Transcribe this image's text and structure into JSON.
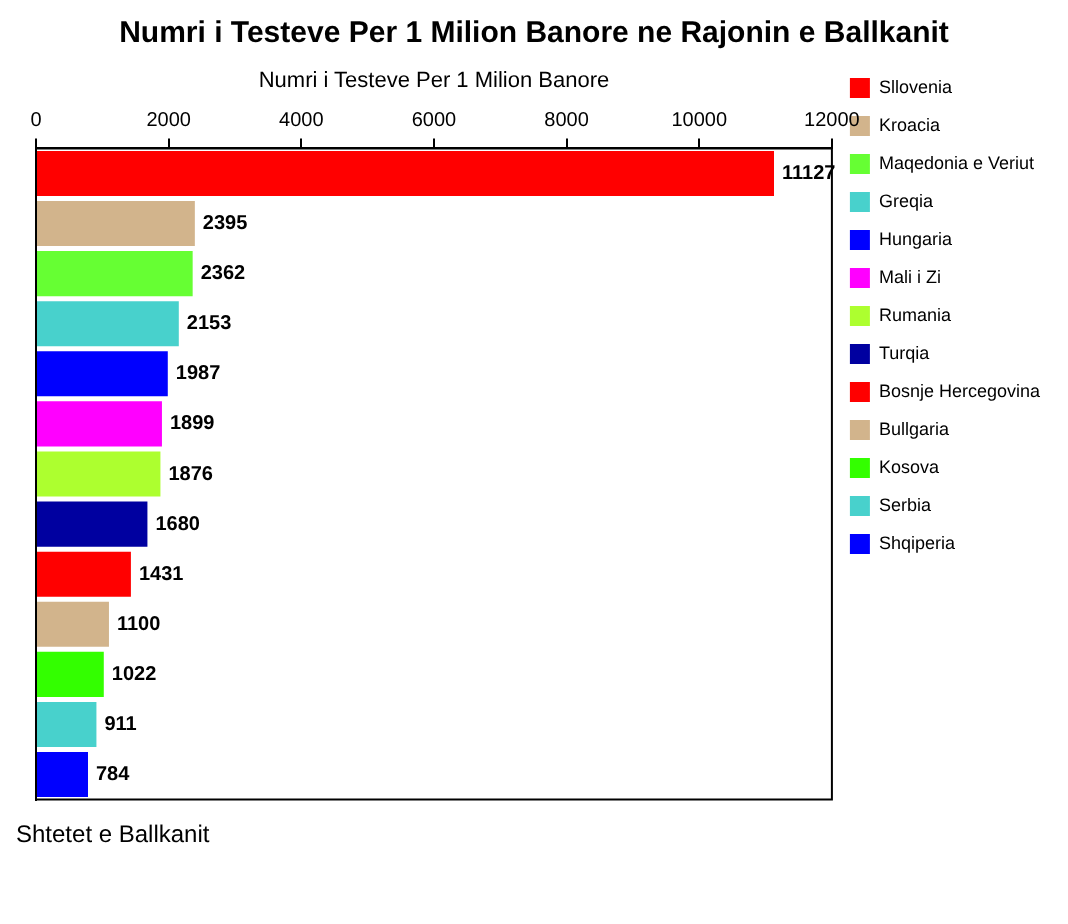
{
  "chart_data": {
    "type": "bar",
    "orientation": "horizontal",
    "title": "Numri i Testeve Per 1 Milion Banore ne Rajonin e Ballkanit",
    "xlabel": "Numri i Testeve Per 1 Milion Banore",
    "annotations": [
      "Shtetet e Ballkanit"
    ],
    "categories": [
      null,
      null,
      null,
      null,
      null,
      null,
      null,
      null,
      null,
      null,
      null,
      null,
      null
    ],
    "series": [
      {
        "name": "Sllovenia",
        "color": "#ff0000",
        "values": [
          11127,
          null,
          null,
          null,
          null,
          null,
          null,
          null,
          null,
          null,
          null,
          null,
          null
        ]
      },
      {
        "name": "Kroacia",
        "color": "#d2b48c",
        "values": [
          null,
          2395,
          null,
          null,
          null,
          null,
          null,
          null,
          null,
          null,
          null,
          null,
          null
        ]
      },
      {
        "name": "Maqedonia e Veriut",
        "color": "#66ff33",
        "values": [
          null,
          null,
          2362,
          null,
          null,
          null,
          null,
          null,
          null,
          null,
          null,
          null,
          null
        ]
      },
      {
        "name": "Greqia",
        "color": "#48d1cc",
        "values": [
          null,
          null,
          null,
          2153,
          null,
          null,
          null,
          null,
          null,
          null,
          null,
          null,
          null
        ]
      },
      {
        "name": "Hungaria",
        "color": "#0000ff",
        "values": [
          null,
          null,
          null,
          null,
          1987,
          null,
          null,
          null,
          null,
          null,
          null,
          null,
          null
        ]
      },
      {
        "name": "Mali i Zi",
        "color": "#ff00ff",
        "values": [
          null,
          null,
          null,
          null,
          null,
          1899,
          null,
          null,
          null,
          null,
          null,
          null,
          null
        ]
      },
      {
        "name": "Rumania",
        "color": "#adff2f",
        "values": [
          null,
          null,
          null,
          null,
          null,
          null,
          1876,
          null,
          null,
          null,
          null,
          null,
          null
        ]
      },
      {
        "name": "Turqia",
        "color": "#0000a0",
        "values": [
          null,
          null,
          null,
          null,
          null,
          null,
          null,
          1680,
          null,
          null,
          null,
          null,
          null
        ]
      },
      {
        "name": "Bosnje Hercegovina",
        "color": "#ff0000",
        "values": [
          null,
          null,
          null,
          null,
          null,
          null,
          null,
          null,
          1431,
          null,
          null,
          null,
          null
        ]
      },
      {
        "name": "Bullgaria",
        "color": "#d2b48c",
        "values": [
          null,
          null,
          null,
          null,
          null,
          null,
          null,
          null,
          null,
          1100,
          null,
          null,
          null
        ]
      },
      {
        "name": "Kosova",
        "color": "#33ff00",
        "values": [
          null,
          null,
          null,
          null,
          null,
          null,
          null,
          null,
          null,
          null,
          1022,
          null,
          null
        ]
      },
      {
        "name": "Serbia",
        "color": "#48d1cc",
        "values": [
          null,
          null,
          null,
          null,
          null,
          null,
          null,
          null,
          null,
          null,
          null,
          911,
          null
        ]
      },
      {
        "name": "Shqiperia",
        "color": "#0000ff",
        "values": [
          null,
          null,
          null,
          null,
          null,
          null,
          null,
          null,
          null,
          null,
          null,
          null,
          784
        ]
      }
    ],
    "xlim": [
      0,
      12000
    ],
    "xticks": [
      0,
      2000,
      4000,
      6000,
      8000,
      10000,
      12000
    ],
    "data_labels": true,
    "legend": "right",
    "grid": false
  }
}
